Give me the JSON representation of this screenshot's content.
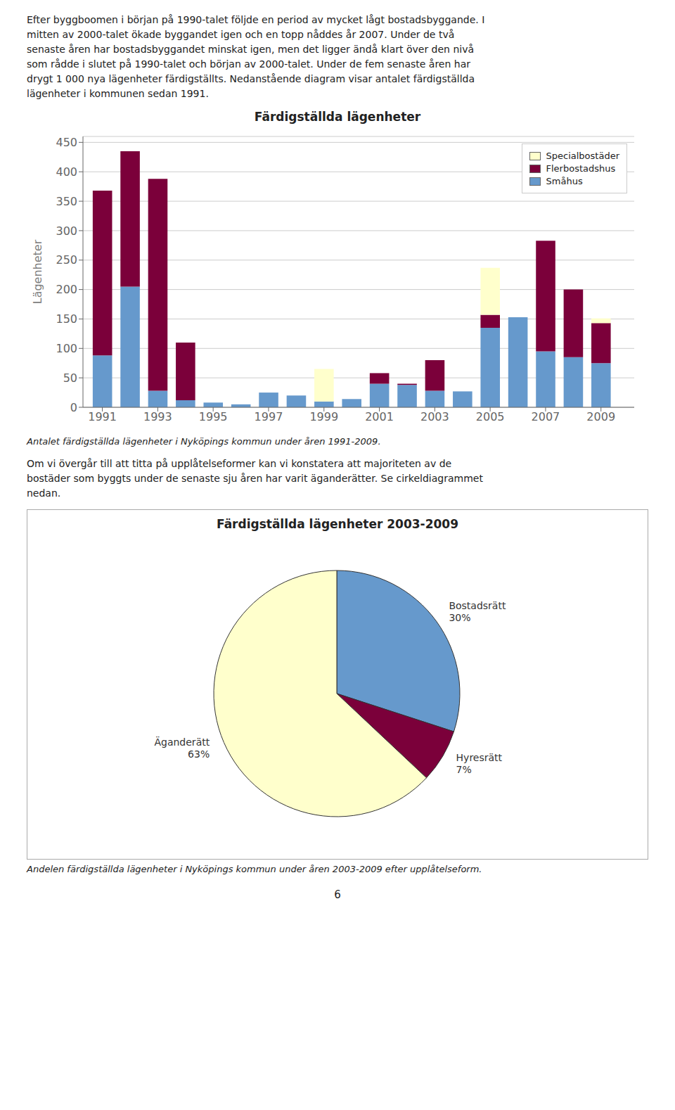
{
  "chart_data": [
    {
      "type": "bar",
      "title": "Färdigställda lägenheter",
      "text_before": [
        "Efter byggboomen i början på 1990-talet följde en period av mycket lågt bostadsbyggande. I",
        "mitten av 2000-talet ökade byggandet igen och en topp nåddes år 2007. Under de två",
        "senaste åren har bostadsbyggandet minskat igen, men det ligger ändå klart över den nivå",
        "som rådde i slutet på 1990-talet och början av 2000-talet. Under de fem senaste åren har",
        "drygt 1 000 nya lägenheter färdigställts. Nedanstående diagram visar antalet färdigställda",
        "lägenheter i kommunen sedan 1991."
      ],
      "ylabel": "Lägenheter",
      "x": [
        1991,
        1992,
        1993,
        1994,
        1995,
        1996,
        1997,
        1998,
        1999,
        2000,
        2001,
        2002,
        2003,
        2004,
        2005,
        2006,
        2007,
        2008,
        2009
      ],
      "series": [
        {
          "name": "Småhus",
          "color": "#6699cc",
          "values": [
            88,
            205,
            28,
            12,
            8,
            5,
            25,
            20,
            10,
            14,
            40,
            38,
            28,
            27,
            135,
            153,
            95,
            85,
            75
          ]
        },
        {
          "name": "Flerbostadshus",
          "color": "#7b003a",
          "values": [
            280,
            230,
            360,
            98,
            0,
            0,
            0,
            0,
            0,
            0,
            18,
            2,
            52,
            0,
            22,
            0,
            188,
            115,
            68
          ]
        },
        {
          "name": "Specialbostäder",
          "color": "#ffffcc",
          "values": [
            0,
            0,
            0,
            0,
            0,
            0,
            0,
            0,
            55,
            0,
            0,
            0,
            0,
            0,
            80,
            0,
            0,
            0,
            8
          ]
        }
      ],
      "stacked": true,
      "xlim": [
        1990.3,
        2010.2
      ],
      "xticks": [
        1991,
        1993,
        1995,
        1997,
        1999,
        2001,
        2003,
        2005,
        2007,
        2009
      ],
      "ylim": [
        0,
        460
      ],
      "yticks": [
        0,
        50,
        100,
        150,
        200,
        250,
        300,
        350,
        400,
        450
      ],
      "grid": true,
      "legend": "upper right",
      "caption": "Antalet färdigställda lägenheter i Nyköpings kommun under åren 1991-2009."
    },
    {
      "type": "pie",
      "title": "Färdigställda lägenheter 2003-2009",
      "text_before": [
        "Om vi övergår till att titta på upplåtelseformer kan vi konstatera att majoriteten av de",
        "bostäder som byggts under de senaste sju åren har varit äganderätter. Se cirkeldiagrammet",
        "nedan."
      ],
      "categories": [
        "Bostadsrätt",
        "Hyresrätt",
        "Äganderätt"
      ],
      "values": [
        30,
        7,
        63
      ],
      "value_labels": [
        "30%",
        "7%",
        "63%"
      ],
      "colors": [
        "#6699cc",
        "#7b003a",
        "#ffffcc"
      ],
      "data_labels": true,
      "caption": "Andelen färdigställda lägenheter i Nyköpings kommun under åren 2003-2009 efter upplåtelseform."
    }
  ],
  "page_number": "6"
}
